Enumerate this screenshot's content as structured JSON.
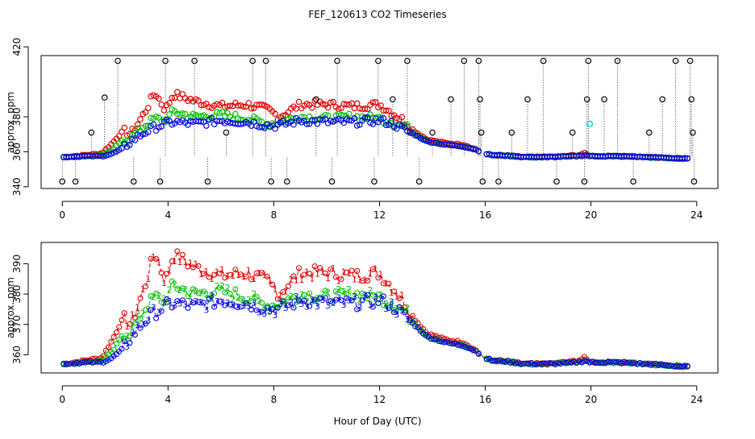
{
  "figure": {
    "title": "FEF_120613  CO2 Timeseries",
    "xlabel": "Hour of Day (UTC)"
  },
  "chart_data": [
    {
      "type": "scatter",
      "title": "FEF_120613  CO2 Timeseries",
      "xlabel": "",
      "ylabel": "approx. ppm",
      "xlim": [
        -0.8,
        24.8
      ],
      "ylim": [
        339,
        415
      ],
      "x_ticks": [
        0,
        4,
        8,
        12,
        16,
        20,
        24
      ],
      "y_ticks": [
        340,
        360,
        380,
        420
      ],
      "colors": {
        "red": "#e00000",
        "green": "#00c000",
        "blue": "#0000e0",
        "black": "#000000",
        "cyan": "#00d0d0"
      },
      "series_hint": "red, green, blue sampled at ~0.1 h; black spikes; one cyan point near x=19.9",
      "black_spikes": [
        {
          "x": 0.5,
          "y": 343
        },
        {
          "x": 1.1,
          "y": 371
        },
        {
          "x": 1.6,
          "y": 391
        },
        {
          "x": 2.1,
          "y": 412
        },
        {
          "x": 2.7,
          "y": 343
        },
        {
          "x": 3.7,
          "y": 343
        },
        {
          "x": 3.9,
          "y": 412
        },
        {
          "x": 5.0,
          "y": 412
        },
        {
          "x": 5.5,
          "y": 343
        },
        {
          "x": 6.2,
          "y": 371
        },
        {
          "x": 7.2,
          "y": 412
        },
        {
          "x": 7.7,
          "y": 412
        },
        {
          "x": 7.9,
          "y": 343
        },
        {
          "x": 8.5,
          "y": 343
        },
        {
          "x": 9.6,
          "y": 390
        },
        {
          "x": 10.2,
          "y": 343
        },
        {
          "x": 10.4,
          "y": 412
        },
        {
          "x": 11.8,
          "y": 343
        },
        {
          "x": 11.95,
          "y": 412
        },
        {
          "x": 12.5,
          "y": 390
        },
        {
          "x": 13.05,
          "y": 412
        },
        {
          "x": 13.5,
          "y": 343
        },
        {
          "x": 14.0,
          "y": 371
        },
        {
          "x": 14.7,
          "y": 390
        },
        {
          "x": 15.2,
          "y": 412
        },
        {
          "x": 15.75,
          "y": 412
        },
        {
          "x": 15.8,
          "y": 390
        },
        {
          "x": 15.85,
          "y": 371
        },
        {
          "x": 15.9,
          "y": 343
        },
        {
          "x": 16.5,
          "y": 343
        },
        {
          "x": 17.0,
          "y": 371
        },
        {
          "x": 17.6,
          "y": 390
        },
        {
          "x": 18.2,
          "y": 412
        },
        {
          "x": 18.7,
          "y": 343
        },
        {
          "x": 19.3,
          "y": 371
        },
        {
          "x": 19.75,
          "y": 343
        },
        {
          "x": 19.9,
          "y": 412
        },
        {
          "x": 19.85,
          "y": 390
        },
        {
          "x": 20.5,
          "y": 390
        },
        {
          "x": 21.0,
          "y": 412
        },
        {
          "x": 21.6,
          "y": 343
        },
        {
          "x": 22.2,
          "y": 371
        },
        {
          "x": 22.7,
          "y": 390
        },
        {
          "x": 23.2,
          "y": 412
        },
        {
          "x": 23.75,
          "y": 412
        },
        {
          "x": 23.8,
          "y": 390
        },
        {
          "x": 23.85,
          "y": 371
        },
        {
          "x": 23.9,
          "y": 343
        },
        {
          "x": 0.0,
          "y": 343
        }
      ],
      "cyan_point": {
        "x": 19.95,
        "y": 376
      }
    },
    {
      "type": "line",
      "title": "",
      "xlabel": "Hour of Day (UTC)",
      "ylabel": "approx. ppm",
      "xlim": [
        -0.8,
        24.8
      ],
      "ylim": [
        354,
        397
      ],
      "x_ticks": [
        0,
        4,
        8,
        12,
        16,
        20,
        24
      ],
      "y_ticks": [
        360,
        370,
        380,
        390
      ],
      "series": [
        {
          "marker": "1",
          "color": "#e00000"
        },
        {
          "marker": "2",
          "color": "#00c000"
        },
        {
          "marker": "3",
          "color": "#0000e0"
        }
      ]
    }
  ],
  "series_model": {
    "knots_x": [
      0.05,
      0.8,
      1.5,
      1.9,
      2.3,
      2.6,
      3.1,
      3.5,
      3.9,
      4.2,
      5.0,
      6.0,
      7.0,
      7.8,
      8.2,
      9.0,
      10.0,
      11.0,
      12.0,
      12.5,
      12.9,
      13.3,
      13.8,
      14.5,
      15.2,
      15.7,
      15.95,
      16.3,
      16.6,
      17.5,
      18.5,
      19.5,
      19.75,
      20.0,
      21.0,
      22.0,
      23.0,
      23.7
    ],
    "knots_red": [
      357,
      358,
      359,
      365,
      372,
      370,
      382,
      394,
      384,
      393,
      389,
      386,
      387,
      384,
      380,
      387,
      387,
      386,
      387,
      382,
      378,
      372,
      367,
      365,
      364,
      361,
      359,
      358,
      358,
      357,
      357,
      358,
      359,
      357.5,
      357.5,
      357,
      356.5,
      356
    ],
    "knots_green": [
      357,
      357.5,
      358,
      361,
      367,
      368,
      375,
      379,
      378,
      383,
      380,
      381,
      379,
      376,
      377,
      380,
      379,
      380,
      379,
      377,
      375,
      371,
      366,
      364,
      363,
      361,
      359,
      358,
      358,
      357,
      357,
      357.5,
      358,
      357.5,
      357.5,
      357,
      356.5,
      356
    ],
    "knots_blue": [
      357,
      357.5,
      357.5,
      359,
      362,
      366,
      371,
      374,
      376,
      377,
      376,
      378,
      377,
      375,
      375,
      378,
      377,
      377,
      378,
      376,
      373,
      370,
      366,
      364,
      363,
      361,
      359,
      358,
      358,
      357,
      357,
      357.5,
      358,
      357.5,
      357.5,
      357,
      356.5,
      356
    ]
  }
}
